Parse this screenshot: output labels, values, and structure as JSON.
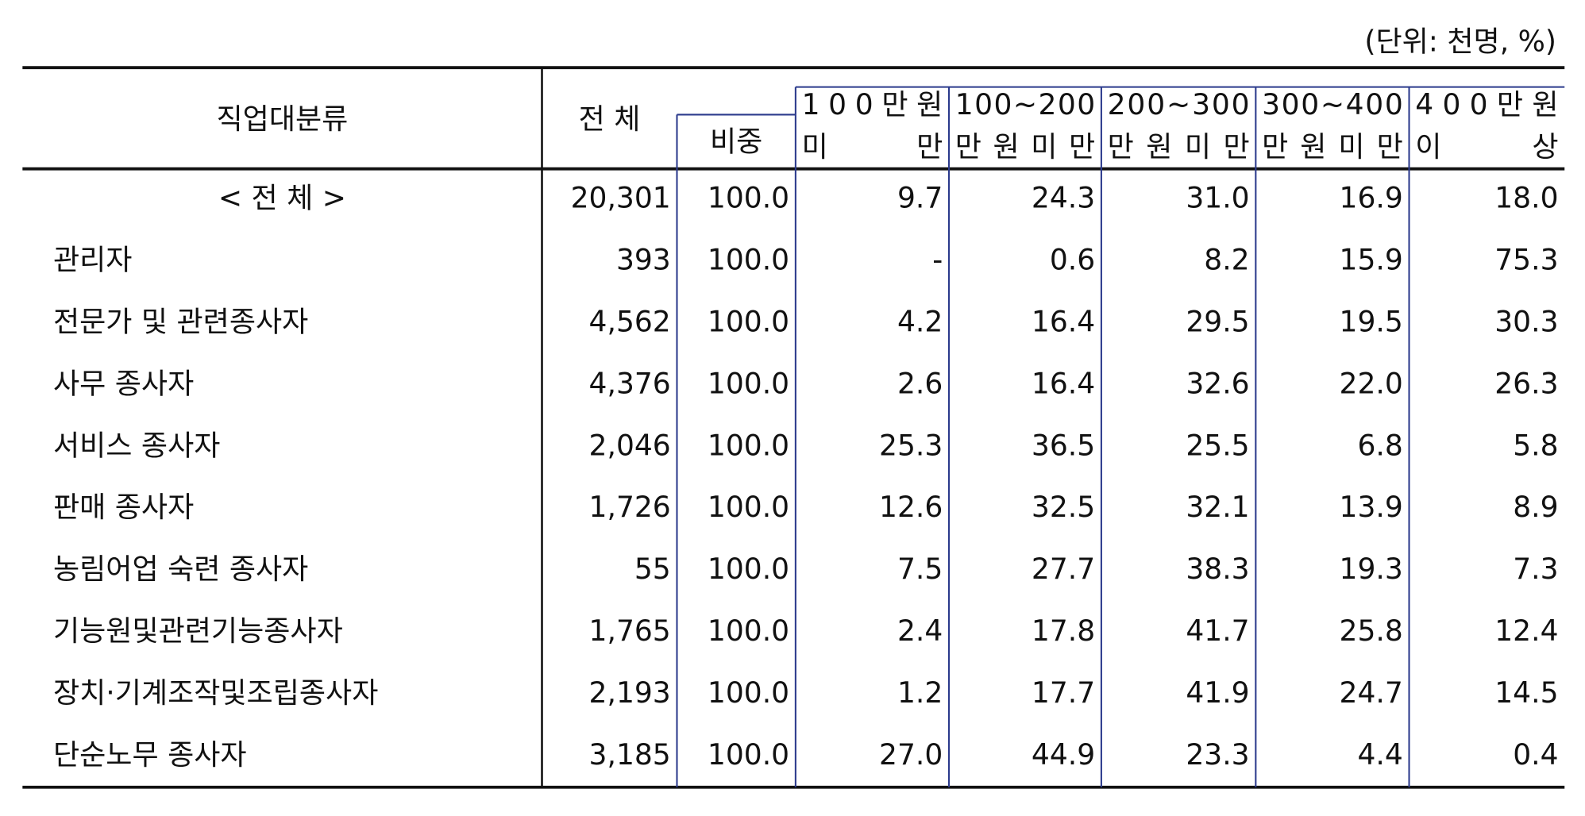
{
  "unit": "(단위: 천명, %)",
  "header": {
    "occupation": "직업대분류",
    "total": "전 체",
    "share": "비중",
    "bands": [
      [
        "100만원",
        "미 만"
      ],
      [
        "100~200",
        "만원미만"
      ],
      [
        "200~300",
        "만원미만"
      ],
      [
        "300~400",
        "만원미만"
      ],
      [
        "400만원",
        "이 상"
      ]
    ]
  },
  "table": {
    "rows": [
      [
        "< 전  체 >",
        "20,301",
        "100.0",
        "9.7",
        "24.3",
        "31.0",
        "16.9",
        "18.0"
      ],
      [
        "관리자",
        "393",
        "100.0",
        "-",
        "0.6",
        "8.2",
        "15.9",
        "75.3"
      ],
      [
        "전문가 및 관련종사자",
        "4,562",
        "100.0",
        "4.2",
        "16.4",
        "29.5",
        "19.5",
        "30.3"
      ],
      [
        "사무 종사자",
        "4,376",
        "100.0",
        "2.6",
        "16.4",
        "32.6",
        "22.0",
        "26.3"
      ],
      [
        "서비스 종사자",
        "2,046",
        "100.0",
        "25.3",
        "36.5",
        "25.5",
        "6.8",
        "5.8"
      ],
      [
        "판매 종사자",
        "1,726",
        "100.0",
        "12.6",
        "32.5",
        "32.1",
        "13.9",
        "8.9"
      ],
      [
        "농림어업 숙련 종사자",
        "55",
        "100.0",
        "7.5",
        "27.7",
        "38.3",
        "19.3",
        "7.3"
      ],
      [
        "기능원및관련기능종사자",
        "1,765",
        "100.0",
        "2.4",
        "17.8",
        "41.7",
        "25.8",
        "12.4"
      ],
      [
        "장치·기계조작및조립종사자",
        "2,193",
        "100.0",
        "1.2",
        "17.7",
        "41.9",
        "24.7",
        "14.5"
      ],
      [
        "단순노무 종사자",
        "3,185",
        "100.0",
        "27.0",
        "44.9",
        "23.3",
        "4.4",
        "0.4"
      ]
    ]
  }
}
